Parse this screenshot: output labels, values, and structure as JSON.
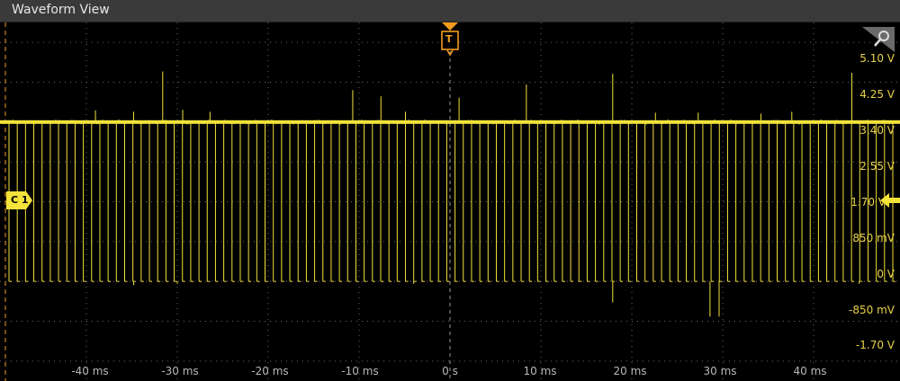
{
  "window": {
    "title": "Waveform View"
  },
  "channel": {
    "label": "C 1",
    "color": "#f2e23a"
  },
  "trigger": {
    "label": "T",
    "color": "#f39c1e",
    "time_ms": 0,
    "level_v": 1.7
  },
  "scope_view": {
    "x_unit": "ms",
    "x_range_ms": [
      -49.5,
      49.5
    ],
    "y_range_v": [
      -2.125,
      5.525
    ],
    "baseline_v": 3.4,
    "pulse_low_v": 0.0,
    "pulse_count": 108,
    "grid": true
  },
  "y_axis_labels": [
    "5.10 V",
    "4.25 V",
    "3.40 V",
    "2.55 V",
    "1.70 V",
    "850 mV",
    "0 V",
    "-850 mV",
    "-1.70 V"
  ],
  "x_axis_labels": [
    "-40 ms",
    "-30 ms",
    "-20 ms",
    "-10 ms",
    "0 s",
    "10 ms",
    "20 ms",
    "30 ms",
    "40 ms"
  ],
  "icons": {
    "zoom": "magnifier-icon"
  }
}
